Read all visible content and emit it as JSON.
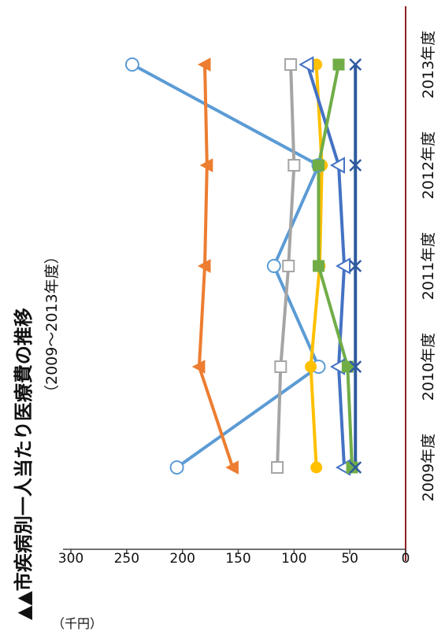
{
  "chart_data": {
    "type": "line",
    "title": "▲▲市疾病別一人当たり医療費の推移",
    "subtitle": "（2009〜2013年度）",
    "ylabel": "（千円）",
    "xlabel": "",
    "categories": [
      "2009年度",
      "2010年度",
      "2011年度",
      "2012年度",
      "2013年度"
    ],
    "yticks": [
      0,
      50,
      100,
      150,
      200,
      250,
      300
    ],
    "ylim": [
      0,
      300
    ],
    "grid": false,
    "legend": "none",
    "series": [
      {
        "color": "#5b9bd5",
        "marker": "circle-open",
        "values": [
          205,
          78,
          118,
          78,
          245
        ]
      },
      {
        "color": "#ed7d31",
        "marker": "triangle-filled",
        "values": [
          155,
          185,
          180,
          178,
          180
        ]
      },
      {
        "color": "#a5a5a5",
        "marker": "square-open",
        "values": [
          115,
          112,
          105,
          100,
          103
        ]
      },
      {
        "color": "#ffc000",
        "marker": "circle-filled",
        "values": [
          80,
          85,
          77,
          75,
          80
        ]
      },
      {
        "color": "#4472c4",
        "marker": "triangle-open",
        "values": [
          55,
          60,
          55,
          60,
          88
        ]
      },
      {
        "color": "#70ad47",
        "marker": "square-filled",
        "values": [
          48,
          52,
          78,
          78,
          60
        ]
      },
      {
        "color": "#2e5a9e",
        "marker": "x",
        "values": [
          45,
          45,
          45,
          45,
          45
        ]
      }
    ]
  }
}
